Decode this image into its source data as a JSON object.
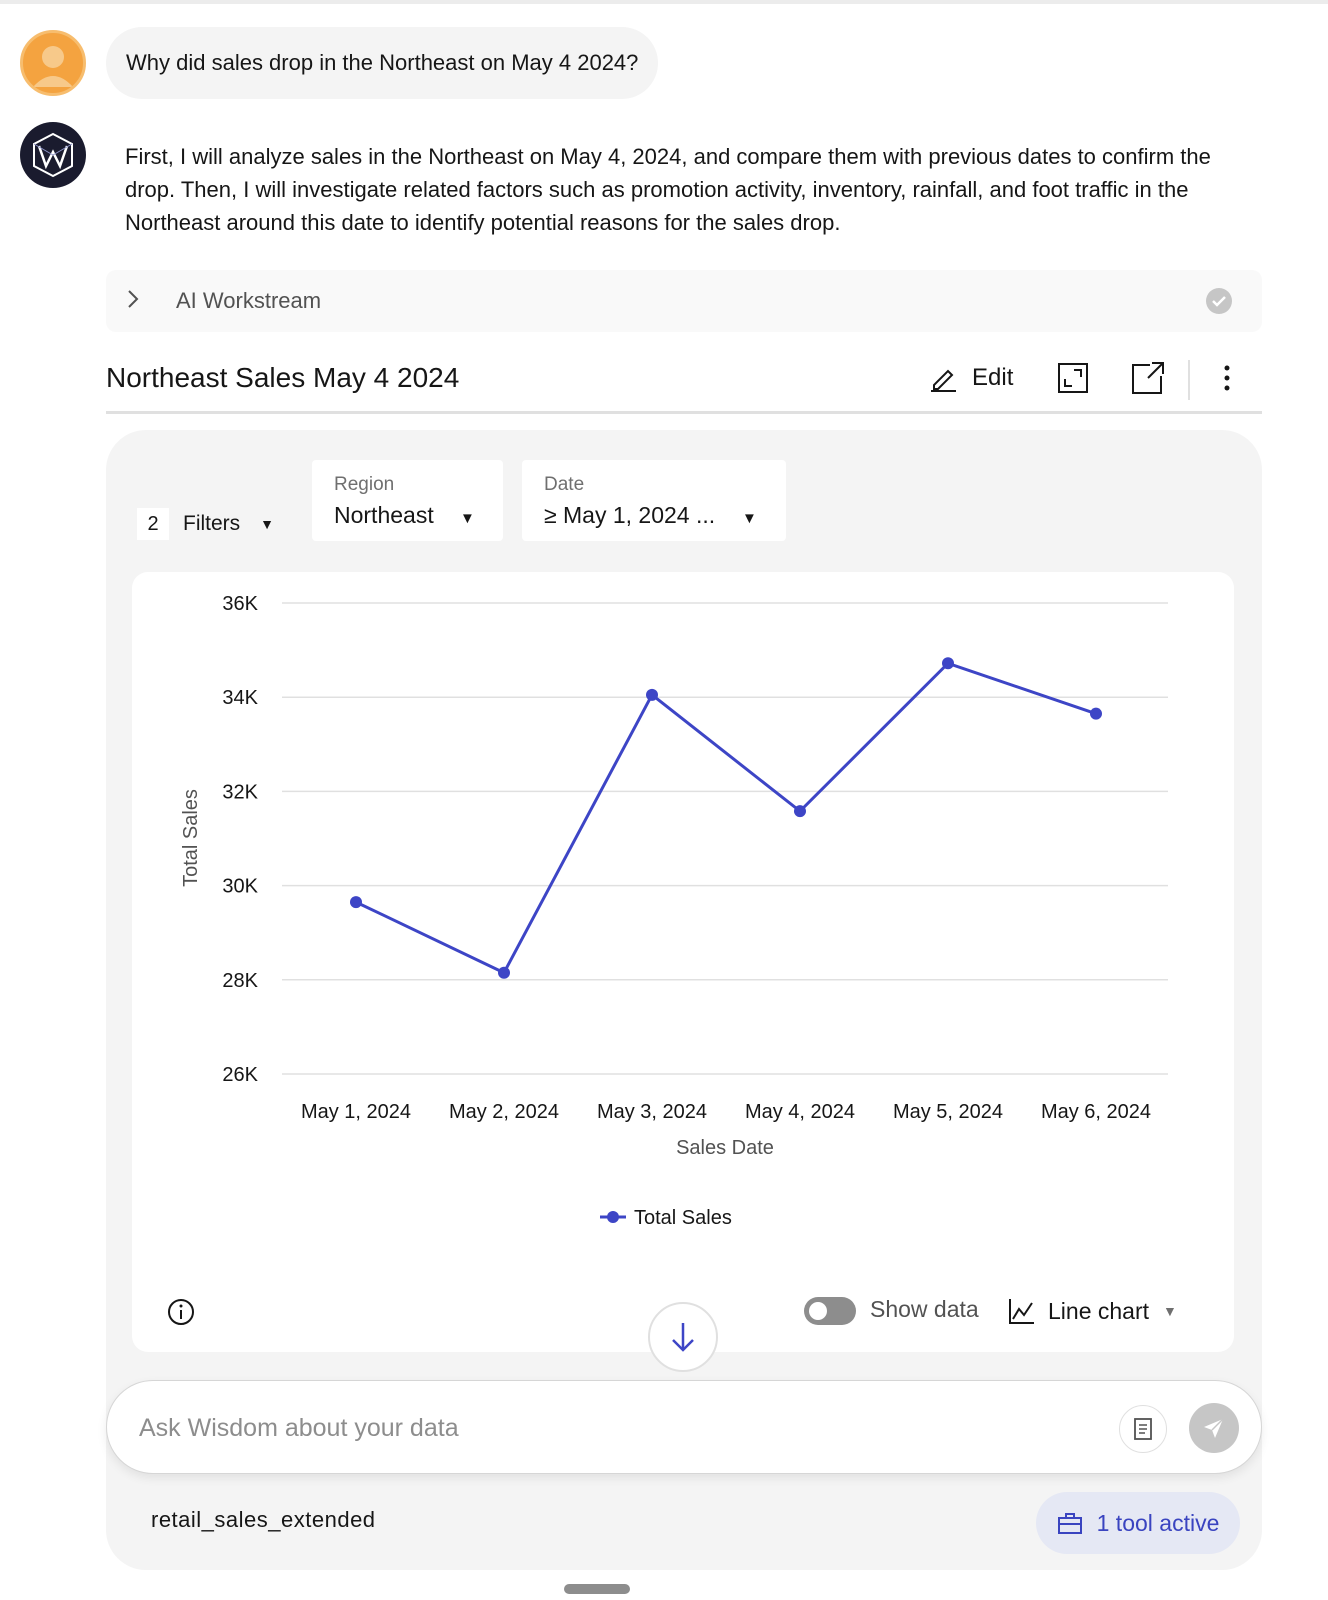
{
  "conversation": {
    "user_question": "Why did sales drop in the Northeast on May 4 2024?",
    "assistant_answer": "First, I will analyze sales in the Northeast on May 4, 2024, and compare them with previous dates to confirm the drop. Then, I will investigate related factors such as promotion activity, inventory, rainfall, and foot traffic in the Northeast around this date to identify potential reasons for the sales drop."
  },
  "workstream": {
    "label": "AI Workstream",
    "status_icon": "check-circle-icon"
  },
  "card": {
    "title": "Northeast Sales May 4 2024",
    "edit_label": "Edit",
    "icons": [
      "pencil-icon",
      "expand-icon",
      "open-external-icon",
      "more-vertical-icon"
    ]
  },
  "filters": {
    "count": "2",
    "label": "Filters",
    "region": {
      "label": "Region",
      "value": "Northeast"
    },
    "date": {
      "label": "Date",
      "value": "≥ May 1, 2024 ..."
    }
  },
  "chart_data": {
    "type": "line",
    "x": [
      "May 1, 2024",
      "May 2, 2024",
      "May 3, 2024",
      "May 4, 2024",
      "May 5, 2024",
      "May 6, 2024"
    ],
    "series": [
      {
        "name": "Total Sales",
        "values": [
          29650,
          28150,
          34050,
          31580,
          34720,
          33650
        ],
        "color": "#3d45c6"
      }
    ],
    "xlabel": "Sales Date",
    "ylabel": "Total Sales",
    "ylim": [
      26000,
      36000
    ],
    "yticks": [
      36000,
      34000,
      32000,
      30000,
      28000,
      26000
    ],
    "ytick_labels": [
      "36K",
      "34K",
      "32K",
      "30K",
      "28K",
      "26K"
    ],
    "grid": true,
    "legend": "bottom-center"
  },
  "chart_controls": {
    "show_data_label": "Show data",
    "show_data_on": false,
    "chart_type_label": "Line chart"
  },
  "composer": {
    "placeholder": "Ask Wisdom about your data",
    "dataset": "retail_sales_extended",
    "tools_label": "1 tool active"
  },
  "colors": {
    "accent": "#3d45c6",
    "user_avatar": "#f4a340",
    "ai_avatar": "#1a1b2e"
  }
}
